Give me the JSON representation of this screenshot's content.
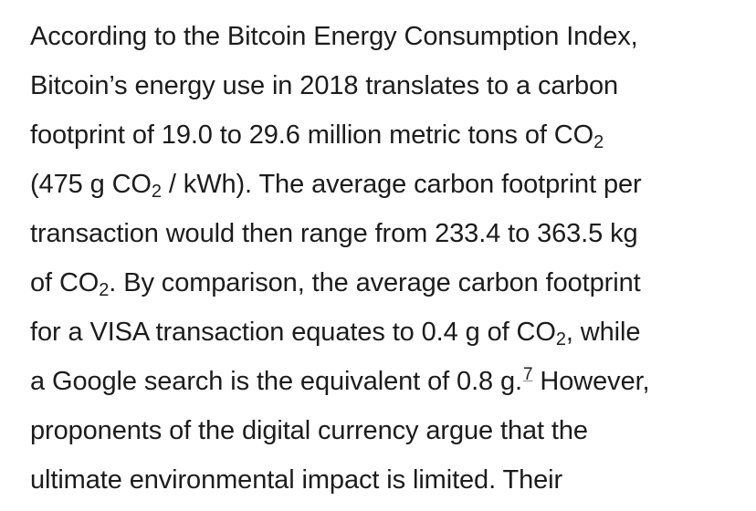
{
  "paragraph": {
    "line1": "According to the Bitcoin Energy Consumption Index,",
    "line2": "Bitcoin’s energy use in 2018 translates to a carbon",
    "line3_a": "footprint of 19.0 to 29.6 million metric tons of CO",
    "line3_sub": "2",
    "line4_a": "(475 g CO",
    "line4_sub": "2",
    "line4_b": " / kWh). The average carbon footprint per",
    "line5": "transaction would then range from 233.4 to 363.5 kg",
    "line6_a": "of CO",
    "line6_sub": "2",
    "line6_b": ". By comparison, the average carbon footprint",
    "line7_a": "for a VISA transaction equates to 0.4 g of CO",
    "line7_sub": "2",
    "line7_b": ", while",
    "line8_a": "a Google search is the equivalent of 0.8 g.",
    "line8_footnote": "7",
    "line8_b": " However,",
    "line9": "proponents of the digital currency argue that the",
    "line10": "ultimate environmental impact is limited. Their"
  }
}
